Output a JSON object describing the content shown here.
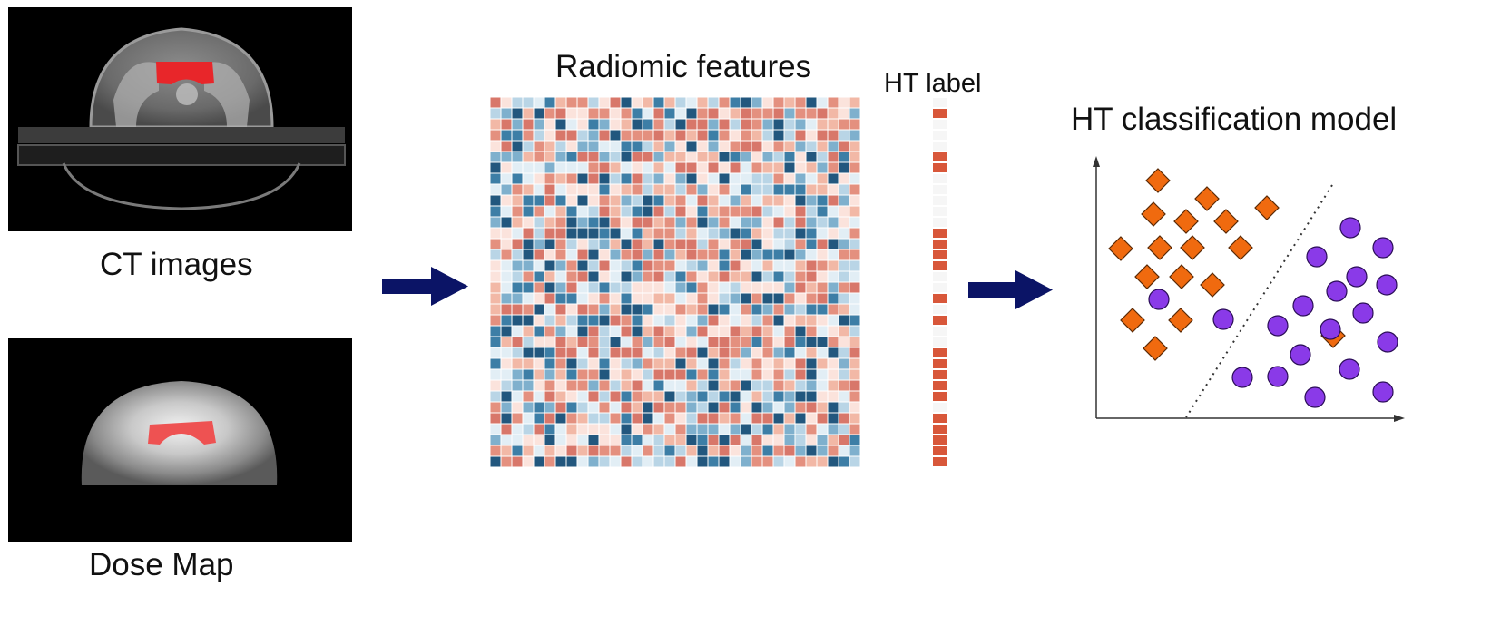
{
  "panels": {
    "ct_caption": "CT images",
    "dose_caption": "Dose Map",
    "heatmap_title": "Radiomic features",
    "ht_label_title": "HT label",
    "model_title": "HT classification model"
  },
  "heatmap": {
    "rows": 34,
    "cols": 34
  },
  "ht_label": {
    "segments": 34,
    "marked": [
      1,
      5,
      6,
      12,
      13,
      14,
      15,
      18,
      20,
      23,
      24,
      25,
      26,
      27,
      29,
      30,
      31,
      32,
      33
    ]
  },
  "colors": {
    "arrow": "#0b1466",
    "organ_highlight": "#e8262a",
    "orange_class": "#f06a0f",
    "purple_class": "#8a3ae8",
    "heat_red": [
      "#fbe3dc",
      "#f2b8a6",
      "#e4907f",
      "#d8776a"
    ],
    "heat_blue": [
      "#e2eef5",
      "#b9d5e6",
      "#7fb0cd",
      "#3d7ea6",
      "#22577e"
    ]
  },
  "icons": [
    "right-arrow-icon",
    "right-arrow-icon",
    "y-axis-arrow-icon",
    "x-axis-arrow-icon"
  ]
}
